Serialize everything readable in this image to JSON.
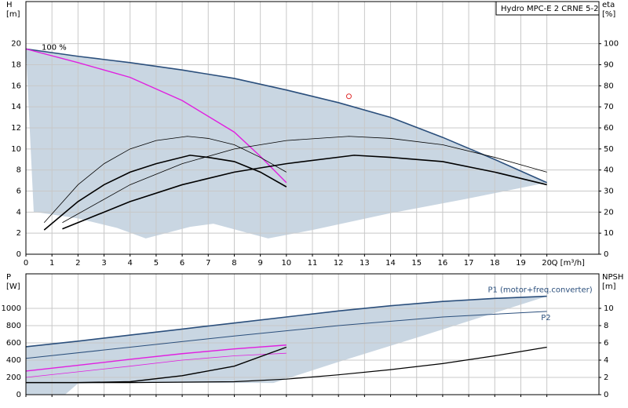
{
  "chart_data": [
    {
      "type": "line",
      "title": "Hydro MPC-E 2 CRNE 5-2",
      "xlabel": "Q [m³/h]",
      "ylabel": "H",
      "yunit": "[m]",
      "y2label": "eta",
      "y2unit": "[%]",
      "annotation": "100 %",
      "grid": true,
      "xlim": [
        0,
        22
      ],
      "xticks": [
        0,
        1,
        2,
        3,
        4,
        5,
        6,
        7,
        8,
        9,
        10,
        11,
        12,
        13,
        14,
        15,
        16,
        17,
        18,
        19,
        20
      ],
      "ylim": [
        0,
        24
      ],
      "yticks": [
        0,
        2,
        4,
        6,
        8,
        10,
        12,
        14,
        16,
        18,
        20
      ],
      "y2lim": [
        0,
        120
      ],
      "y2ticks": [
        0,
        10,
        20,
        30,
        40,
        50,
        60,
        70,
        80,
        90,
        100
      ],
      "region": {
        "color": "#c9d6e2",
        "x": [
          0,
          2,
          4,
          6,
          8,
          10,
          12,
          14,
          16,
          18,
          20,
          17,
          14,
          11,
          9.3,
          7.2,
          6.3,
          4.6,
          3.5,
          2,
          0.4,
          0.3
        ],
        "values": [
          19.5,
          18.8,
          18.2,
          17.5,
          16.7,
          15.6,
          14.4,
          13,
          11.1,
          9,
          6.8,
          5.3,
          3.9,
          2.3,
          1.5,
          2.9,
          2.6,
          1.5,
          2.5,
          3.4,
          4,
          4
        ]
      },
      "series": [
        {
          "color": "#2b4f7c",
          "width": 1.6,
          "x": [
            0,
            2,
            4,
            6,
            8,
            10,
            12,
            14,
            16,
            18,
            20
          ],
          "values": [
            19.5,
            18.8,
            18.2,
            17.5,
            16.7,
            15.6,
            14.4,
            13,
            11.1,
            9,
            6.8
          ]
        },
        {
          "color": "#e020e0",
          "width": 1.4,
          "x": [
            0,
            2,
            4,
            6,
            8,
            9,
            10
          ],
          "values": [
            19.5,
            18.2,
            16.8,
            14.6,
            11.6,
            9.3,
            6.8
          ]
        },
        {
          "color": "#000000",
          "width": 0.8,
          "axis": "y2",
          "x": [
            0.7,
            2,
            3,
            4,
            5,
            6.2,
            7,
            8,
            9,
            10
          ],
          "values": [
            15,
            33,
            43,
            50,
            54,
            56,
            55,
            52,
            46,
            39
          ]
        },
        {
          "color": "#000000",
          "width": 1.6,
          "axis": "y2",
          "x": [
            0.7,
            2,
            3,
            4,
            5,
            6.3,
            7,
            8,
            9,
            10
          ],
          "values": [
            11.5,
            25,
            33,
            39,
            43,
            47,
            46,
            44,
            39,
            32
          ]
        },
        {
          "color": "#000000",
          "width": 0.8,
          "axis": "y2",
          "x": [
            1.4,
            4,
            6,
            8,
            10,
            12.4,
            14,
            16,
            18,
            20
          ],
          "values": [
            15,
            33,
            43,
            50,
            54,
            56,
            55,
            52,
            46,
            39
          ]
        },
        {
          "color": "#000000",
          "width": 1.6,
          "axis": "y2",
          "x": [
            1.4,
            4,
            6,
            8,
            10,
            12.6,
            14,
            16,
            18,
            20
          ],
          "values": [
            12,
            25,
            33,
            39,
            43,
            47,
            46,
            44,
            39,
            33
          ]
        }
      ],
      "duty_point": {
        "x": 12.4,
        "y": 15,
        "color": "#e03030"
      }
    },
    {
      "type": "line",
      "ylabel": "P",
      "yunit": "[W]",
      "y2label": "NPSH",
      "y2unit": "[m]",
      "grid": true,
      "xlim": [
        0,
        22
      ],
      "xticks": [
        0,
        1,
        2,
        3,
        4,
        5,
        6,
        7,
        8,
        9,
        10,
        11,
        12,
        13,
        14,
        15,
        16,
        17,
        18,
        19,
        20
      ],
      "ylim": [
        0,
        1400
      ],
      "yticks": [
        0,
        200,
        400,
        600,
        800,
        1000
      ],
      "y2lim": [
        0,
        14
      ],
      "y2ticks": [
        0,
        2,
        4,
        6,
        8,
        10
      ],
      "region": {
        "color": "#c9d6e2",
        "x": [
          0,
          2,
          4,
          6,
          8,
          10,
          12,
          14,
          16,
          18,
          20,
          15,
          12,
          9.5,
          4,
          2,
          1.5,
          0
        ],
        "values": [
          555,
          620,
          690,
          760,
          830,
          900,
          970,
          1030,
          1080,
          1115,
          1140,
          660,
          380,
          135,
          140,
          130,
          0,
          0
        ]
      },
      "series": [
        {
          "name": "P1 (motor+freq.converter)",
          "color": "#2b4f7c",
          "width": 1.6,
          "x": [
            0,
            2,
            4,
            6,
            8,
            10,
            12,
            14,
            16,
            18,
            20
          ],
          "values": [
            555,
            620,
            690,
            760,
            830,
            900,
            970,
            1030,
            1080,
            1115,
            1140
          ]
        },
        {
          "name": "P2",
          "color": "#2b4f7c",
          "width": 1,
          "x": [
            0,
            4,
            8,
            12,
            16,
            20
          ],
          "values": [
            420,
            550,
            680,
            800,
            900,
            965
          ]
        },
        {
          "color": "#e020e0",
          "width": 1.4,
          "x": [
            0,
            2,
            4,
            6,
            8,
            10
          ],
          "values": [
            273,
            340,
            410,
            475,
            530,
            575
          ]
        },
        {
          "color": "#e020e0",
          "width": 0.8,
          "x": [
            0,
            2,
            4,
            6,
            8,
            10
          ],
          "values": [
            200,
            265,
            330,
            400,
            450,
            480
          ]
        },
        {
          "color": "#000000",
          "width": 1.4,
          "axis": "y2",
          "x": [
            0,
            2,
            4,
            6,
            8,
            10
          ],
          "values": [
            1.4,
            1.4,
            1.5,
            2.2,
            3.3,
            5.5
          ]
        },
        {
          "color": "#000000",
          "width": 1.2,
          "axis": "y2",
          "x": [
            0,
            4,
            8,
            10,
            12,
            14,
            16,
            18,
            20
          ],
          "values": [
            1.4,
            1.4,
            1.5,
            1.8,
            2.3,
            2.9,
            3.6,
            4.5,
            5.5
          ]
        }
      ]
    }
  ]
}
